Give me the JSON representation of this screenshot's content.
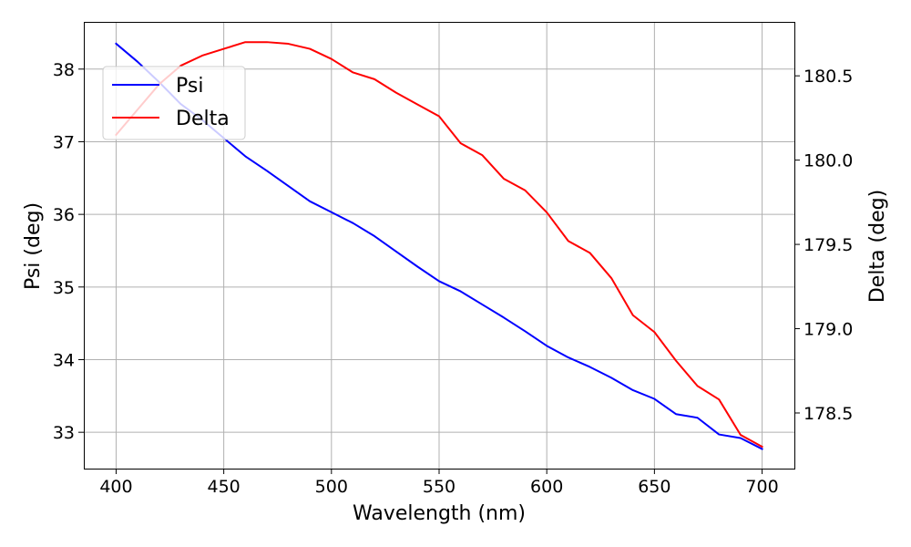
{
  "chart_data": {
    "type": "line",
    "title": "",
    "xlabel": "Wavelength (nm)",
    "ylabel_left": "Psi (deg)",
    "ylabel_right": "Delta (deg)",
    "xlim": [
      385,
      715
    ],
    "ylim_left": [
      32.5,
      38.65
    ],
    "ylim_right": [
      178.17,
      180.82
    ],
    "xticks": [
      400,
      450,
      500,
      550,
      600,
      650,
      700
    ],
    "yticks_left": [
      33,
      34,
      35,
      36,
      37,
      38
    ],
    "yticks_right": [
      "178.5",
      "179.0",
      "179.5",
      "180.0",
      "180.5"
    ],
    "grid": true,
    "legend_position": "upper-left",
    "x": [
      400,
      410,
      420,
      430,
      440,
      450,
      460,
      470,
      480,
      490,
      500,
      510,
      520,
      530,
      540,
      550,
      560,
      570,
      580,
      590,
      600,
      610,
      620,
      630,
      640,
      650,
      660,
      670,
      680,
      690,
      700
    ],
    "series": [
      {
        "name": "Psi",
        "axis": "left",
        "color": "#0000ff",
        "values": [
          38.35,
          38.1,
          37.82,
          37.52,
          37.3,
          37.05,
          36.8,
          36.6,
          36.39,
          36.18,
          36.03,
          35.88,
          35.7,
          35.49,
          35.28,
          35.08,
          34.94,
          34.76,
          34.58,
          34.39,
          34.19,
          34.03,
          33.9,
          33.75,
          33.58,
          33.46,
          33.25,
          33.2,
          32.97,
          32.92,
          32.77
        ]
      },
      {
        "name": "Delta",
        "axis": "right",
        "color": "#ff0000",
        "values": [
          180.15,
          180.3,
          180.45,
          180.56,
          180.62,
          180.66,
          180.7,
          180.7,
          180.69,
          180.66,
          180.6,
          180.52,
          180.48,
          180.4,
          180.33,
          180.26,
          180.1,
          180.03,
          179.89,
          179.82,
          179.69,
          179.52,
          179.45,
          179.3,
          179.08,
          178.98,
          178.81,
          178.66,
          178.58,
          178.37,
          178.3
        ]
      }
    ]
  }
}
